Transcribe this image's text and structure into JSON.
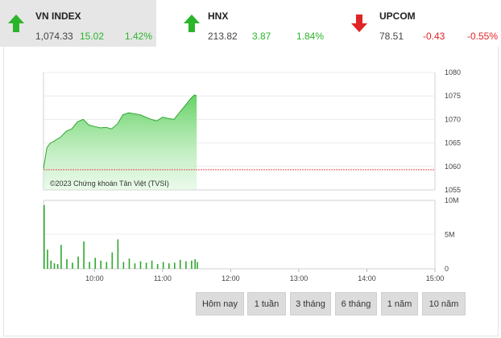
{
  "indices": [
    {
      "name": "VN INDEX",
      "price": "1,074.33",
      "change": "15.02",
      "percent": "1.42%",
      "direction": "up",
      "icon": "arrow-up-icon"
    },
    {
      "name": "HNX",
      "price": "213.82",
      "change": "3.87",
      "percent": "1.84%",
      "direction": "up",
      "icon": "arrow-up-icon"
    },
    {
      "name": "UPCOM",
      "price": "78.51",
      "change": "-0.43",
      "percent": "-0.55%",
      "direction": "down",
      "icon": "arrow-down-icon"
    }
  ],
  "colors": {
    "up": "#2bb52b",
    "down": "#e02424",
    "reference_line": "#e05050",
    "area_fill": "#6fd86f"
  },
  "copyright": "©2023 Chứng khoán Tân Việt (TVSI)",
  "periods": [
    "Hôm nay",
    "1 tuần",
    "3 tháng",
    "6 tháng",
    "1 năm",
    "10 năm"
  ],
  "chart_data": {
    "type": "area",
    "y_ticks": [
      "1080",
      "1075",
      "1070",
      "1065",
      "1060",
      "1055"
    ],
    "ylim": [
      1055,
      1080
    ],
    "reference_value": 1059.31,
    "x_ticks": [
      "10:00",
      "11:00",
      "12:00",
      "13:00",
      "14:00",
      "15:00"
    ],
    "x": [
      "09:15",
      "09:18",
      "09:21",
      "09:24",
      "09:27",
      "09:30",
      "09:35",
      "09:40",
      "09:45",
      "09:50",
      "09:55",
      "10:00",
      "10:05",
      "10:10",
      "10:15",
      "10:20",
      "10:25",
      "10:30",
      "10:35",
      "10:40",
      "10:45",
      "10:50",
      "10:55",
      "11:00",
      "11:05",
      "11:10",
      "11:15",
      "11:20",
      "11:25",
      "11:28",
      "11:30"
    ],
    "price": [
      1059.5,
      1064.0,
      1065.0,
      1065.3,
      1065.8,
      1066.2,
      1067.5,
      1068.0,
      1069.5,
      1070.0,
      1068.8,
      1068.5,
      1068.2,
      1068.3,
      1068.0,
      1069.0,
      1071.0,
      1071.4,
      1071.2,
      1071.0,
      1070.5,
      1070.0,
      1069.7,
      1070.5,
      1070.2,
      1070.0,
      1071.5,
      1073.0,
      1074.5,
      1075.2,
      1075.0
    ],
    "volume_ticks": [
      "10M",
      "5M",
      "0"
    ],
    "volume_max": 10,
    "volume": [
      9.3,
      2.8,
      1.2,
      0.8,
      0.7,
      3.5,
      1.4,
      0.9,
      1.8,
      4.0,
      1.0,
      1.6,
      1.2,
      1.0,
      2.4,
      4.3,
      1.0,
      1.5,
      0.8,
      1.1,
      0.9,
      1.2,
      0.7,
      1.0,
      0.8,
      0.9,
      1.3,
      1.1,
      1.2,
      1.4,
      1.0
    ]
  }
}
